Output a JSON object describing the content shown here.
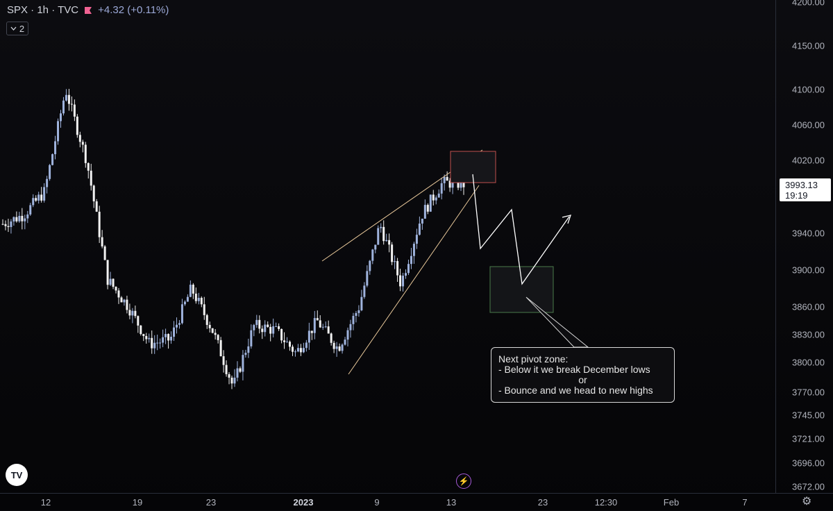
{
  "header": {
    "symbol": "SPX · 1h · TVC",
    "change": "+4.32 (+0.11%)",
    "indicator_count": "2"
  },
  "price_tag": {
    "price": "3993.13",
    "countdown": "19:19"
  },
  "annotation": {
    "line1": "Next pivot zone:",
    "line2": "- Below it we break December lows",
    "line3": "or",
    "line4": "- Bounce and we head to new highs"
  },
  "colors": {
    "background": "#0b0b0e",
    "candle_up": "#9fb3dd",
    "candle_down": "#f2f2f2",
    "trendline": "#e8c89a",
    "resistance_box": "#c0504d",
    "pivot_box": "#4a7a4a",
    "projection": "#ffffff"
  },
  "icons": {
    "flag": "flag-icon",
    "chevron": "chevron-down-icon",
    "logo": "tradingview-logo",
    "bolt": "lightning-icon",
    "settings": "gear-icon"
  },
  "chart_data": {
    "type": "candlestick",
    "symbol": "SPX",
    "interval": "1h",
    "y_ticks": [
      "4200.00",
      "4150.00",
      "4100.00",
      "4060.00",
      "4020.00",
      "3993.13",
      "3940.00",
      "3900.00",
      "3860.00",
      "3830.00",
      "3800.00",
      "3770.00",
      "3745.00",
      "3721.00",
      "3696.00",
      "3672.00"
    ],
    "x_ticks": [
      "12",
      "19",
      "23",
      "2023",
      "9",
      "13",
      "23",
      "12:30",
      "Feb",
      "7"
    ],
    "last_price": 3993.13,
    "price_path": [
      {
        "t": "Dec 8",
        "p": 3950
      },
      {
        "t": "Dec 10",
        "p": 3960
      },
      {
        "t": "Dec 12",
        "p": 3985
      },
      {
        "t": "Dec 13",
        "p": 4100
      },
      {
        "t": "Dec 14",
        "p": 4020
      },
      {
        "t": "Dec 15",
        "p": 3890
      },
      {
        "t": "Dec 16",
        "p": 3860
      },
      {
        "t": "Dec 19",
        "p": 3820
      },
      {
        "t": "Dec 20",
        "p": 3825
      },
      {
        "t": "Dec 21",
        "p": 3880
      },
      {
        "t": "Dec 22",
        "p": 3835
      },
      {
        "t": "Dec 23",
        "p": 3775
      },
      {
        "t": "Dec 27",
        "p": 3840
      },
      {
        "t": "Dec 29",
        "p": 3835
      },
      {
        "t": "Dec 30",
        "p": 3810
      },
      {
        "t": "Jan 3",
        "p": 3845
      },
      {
        "t": "Jan 5",
        "p": 3815
      },
      {
        "t": "Jan 6",
        "p": 3860
      },
      {
        "t": "Jan 9",
        "p": 3950
      },
      {
        "t": "Jan 10",
        "p": 3885
      },
      {
        "t": "Jan 11",
        "p": 3960
      },
      {
        "t": "Jan 12",
        "p": 3995
      },
      {
        "t": "Jan 13",
        "p": 3993.13
      }
    ]
  }
}
